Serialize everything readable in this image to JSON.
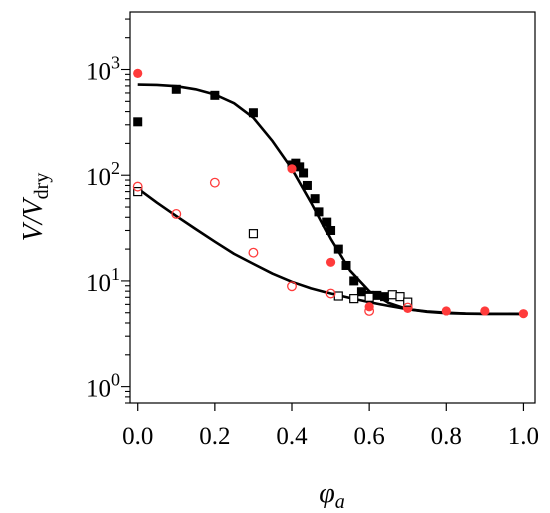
{
  "chart_data": {
    "type": "scatter",
    "title": "",
    "xlabel": "φ_a",
    "ylabel": "V/V_dry",
    "xlabel_parts": {
      "main": "φ",
      "sub": "a"
    },
    "ylabel_parts": {
      "main": "V/V",
      "sub": "dry"
    },
    "xlim": [
      -0.02,
      1.03
    ],
    "ylim": [
      0.7,
      3500
    ],
    "yscale": "log",
    "grid": false,
    "legend": "none",
    "x_ticks": [
      0.0,
      0.2,
      0.4,
      0.6,
      0.8,
      1.0
    ],
    "x_tick_labels": [
      "0.0",
      "0.2",
      "0.4",
      "0.6",
      "0.8",
      "1.0"
    ],
    "y_ticks": [
      1,
      10,
      100,
      1000
    ],
    "y_tick_labels": [
      {
        "base": "10",
        "exp": "0"
      },
      {
        "base": "10",
        "exp": "1"
      },
      {
        "base": "10",
        "exp": "2"
      },
      {
        "base": "10",
        "exp": "3"
      }
    ],
    "series": [
      {
        "marker": "filled-square",
        "color": "#000000",
        "points": [
          [
            0.0,
            320
          ],
          [
            0.1,
            650
          ],
          [
            0.2,
            570
          ],
          [
            0.3,
            390
          ],
          [
            0.4,
            125
          ],
          [
            0.41,
            130
          ],
          [
            0.42,
            120
          ],
          [
            0.43,
            105
          ],
          [
            0.44,
            80
          ],
          [
            0.46,
            60
          ],
          [
            0.47,
            45
          ],
          [
            0.49,
            36
          ],
          [
            0.5,
            30
          ],
          [
            0.52,
            20
          ],
          [
            0.54,
            14
          ],
          [
            0.56,
            10
          ],
          [
            0.58,
            7.9
          ],
          [
            0.6,
            7.3
          ],
          [
            0.62,
            7.3
          ],
          [
            0.64,
            7.1
          ]
        ]
      },
      {
        "marker": "filled-circle",
        "color": "#ff3b3b",
        "points": [
          [
            0.0,
            920
          ],
          [
            0.4,
            115
          ],
          [
            0.5,
            15
          ],
          [
            0.6,
            5.7
          ],
          [
            0.7,
            5.5
          ],
          [
            0.8,
            5.2
          ],
          [
            0.9,
            5.2
          ],
          [
            1.0,
            4.9
          ]
        ]
      },
      {
        "marker": "open-square",
        "color": "#000000",
        "points": [
          [
            0.0,
            70
          ],
          [
            0.3,
            28
          ],
          [
            0.52,
            7.2
          ],
          [
            0.56,
            6.8
          ],
          [
            0.6,
            7.0
          ],
          [
            0.66,
            7.4
          ],
          [
            0.68,
            7.1
          ],
          [
            0.7,
            6.3
          ]
        ]
      },
      {
        "marker": "open-circle",
        "color": "#ff3b3b",
        "points": [
          [
            0.0,
            78
          ],
          [
            0.1,
            43
          ],
          [
            0.2,
            85
          ],
          [
            0.3,
            18.5
          ],
          [
            0.4,
            8.9
          ],
          [
            0.5,
            7.6
          ],
          [
            0.6,
            5.2
          ],
          [
            0.7,
            5.6
          ]
        ]
      }
    ],
    "fits": [
      {
        "color": "#000000",
        "points": [
          [
            0.0,
            720
          ],
          [
            0.05,
            715
          ],
          [
            0.1,
            695
          ],
          [
            0.15,
            650
          ],
          [
            0.2,
            580
          ],
          [
            0.25,
            480
          ],
          [
            0.3,
            350
          ],
          [
            0.35,
            210
          ],
          [
            0.4,
            115
          ],
          [
            0.45,
            55
          ],
          [
            0.5,
            25
          ],
          [
            0.55,
            12.5
          ],
          [
            0.6,
            8
          ],
          [
            0.65,
            6.2
          ],
          [
            0.7,
            5.4
          ],
          [
            0.75,
            5.1
          ],
          [
            0.8,
            4.95
          ],
          [
            0.85,
            4.9
          ],
          [
            0.9,
            4.88
          ],
          [
            1.0,
            4.88
          ]
        ]
      },
      {
        "color": "#000000",
        "points": [
          [
            0.0,
            75
          ],
          [
            0.05,
            55
          ],
          [
            0.1,
            41
          ],
          [
            0.15,
            31
          ],
          [
            0.2,
            23.5
          ],
          [
            0.25,
            18
          ],
          [
            0.3,
            14.5
          ],
          [
            0.35,
            11.7
          ],
          [
            0.4,
            9.8
          ],
          [
            0.45,
            8.5
          ],
          [
            0.5,
            7.6
          ],
          [
            0.55,
            6.9
          ],
          [
            0.6,
            6.3
          ],
          [
            0.65,
            5.8
          ],
          [
            0.7,
            5.4
          ],
          [
            0.75,
            5.15
          ],
          [
            0.8,
            5.0
          ],
          [
            0.85,
            4.92
          ],
          [
            0.9,
            4.89
          ],
          [
            1.0,
            4.88
          ]
        ]
      }
    ]
  }
}
